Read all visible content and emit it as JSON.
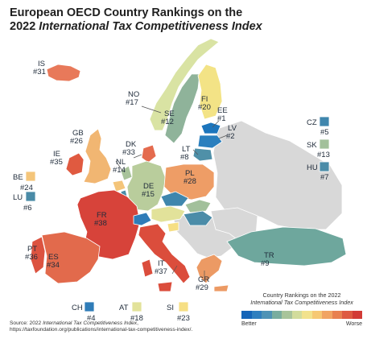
{
  "title": {
    "line1": "European OECD Country Rankings on the",
    "line2_prefix": "2022 ",
    "line2_italic": "International Tax Competitiveness Index"
  },
  "countries": [
    {
      "code": "IS",
      "rank": "#31",
      "color": "#e8795a"
    },
    {
      "code": "NO",
      "rank": "#17",
      "color": "#d9e3a3"
    },
    {
      "code": "SE",
      "rank": "#12",
      "color": "#8fb39a"
    },
    {
      "code": "FI",
      "rank": "#20",
      "color": "#f3e386"
    },
    {
      "code": "EE",
      "rank": "#1",
      "color": "#1c75bc"
    },
    {
      "code": "LV",
      "rank": "#2",
      "color": "#2a7fbe"
    },
    {
      "code": "LT",
      "rank": "#8",
      "color": "#4f90a8"
    },
    {
      "code": "GB",
      "rank": "#26",
      "color": "#f1b672"
    },
    {
      "code": "IE",
      "rank": "#35",
      "color": "#e05a40"
    },
    {
      "code": "DK",
      "rank": "#33",
      "color": "#e46b4e"
    },
    {
      "code": "NL",
      "rank": "#14",
      "color": "#a8c39a"
    },
    {
      "code": "BE",
      "rank": "#24",
      "color": "#f4c57a"
    },
    {
      "code": "LU",
      "rank": "#6",
      "color": "#4a8ba7"
    },
    {
      "code": "DE",
      "rank": "#15",
      "color": "#b9cd9c"
    },
    {
      "code": "PL",
      "rank": "#28",
      "color": "#ee9d66"
    },
    {
      "code": "CZ",
      "rank": "#5",
      "color": "#3f86ad"
    },
    {
      "code": "SK",
      "rank": "#13",
      "color": "#a2c09b"
    },
    {
      "code": "HU",
      "rank": "#7",
      "color": "#4b8ca8"
    },
    {
      "code": "FR",
      "rank": "#38",
      "color": "#d7433a"
    },
    {
      "code": "CH",
      "rank": "#4",
      "color": "#2f7cb8"
    },
    {
      "code": "AT",
      "rank": "#18",
      "color": "#e2e29a"
    },
    {
      "code": "SI",
      "rank": "#23",
      "color": "#f6df84"
    },
    {
      "code": "IT",
      "rank": "#37",
      "color": "#db4d3c"
    },
    {
      "code": "PT",
      "rank": "#36",
      "color": "#dc5340"
    },
    {
      "code": "ES",
      "rank": "#34",
      "color": "#e26a4c"
    },
    {
      "code": "GR",
      "rank": "#29",
      "color": "#ec9a64"
    },
    {
      "code": "TR",
      "rank": "#9",
      "color": "#6ea79d"
    }
  ],
  "non_oecd_color": "#d8d8d8",
  "source": {
    "prefix": "Source: 2022 ",
    "italic": "International Tax Competitiveness Index",
    "suffix": ",",
    "url": "https://taxfoundation.org/publications/international-tax-competitiveness-index/."
  },
  "legend": {
    "title_line1": "Country Rankings on the 2022",
    "title_line2": "International Tax Competitiveness Index",
    "better_label": "Better",
    "worse_label": "Worse",
    "scale": [
      "#1565b8",
      "#2f7fbf",
      "#4e93b6",
      "#79ad9f",
      "#a8c49b",
      "#d2dc9c",
      "#f2e28c",
      "#f6c873",
      "#f1a462",
      "#e8804f",
      "#de5a41",
      "#d23b36"
    ]
  }
}
